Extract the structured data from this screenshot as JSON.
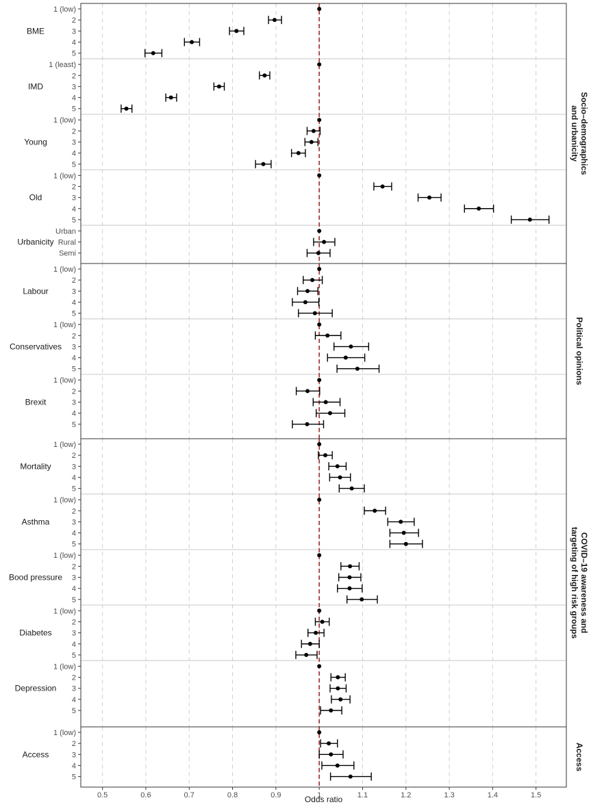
{
  "chart_data": {
    "type": "forest",
    "xlabel": "Odds ratio",
    "xlim": [
      0.45,
      1.57
    ],
    "xticks": [
      0.5,
      0.6,
      0.7,
      0.8,
      0.9,
      1.0,
      1.1,
      1.2,
      1.3,
      1.4,
      1.5
    ],
    "xtick_labels": [
      "0.5",
      "0.6",
      "0.7",
      "0.8",
      "0.9",
      "1",
      "1.1",
      "1.2",
      "1.3",
      "1.4",
      "1.5"
    ],
    "reference_line": {
      "x": 1.0,
      "color": "#cc2a2a",
      "style": "dashed"
    },
    "grid": true,
    "colors": {
      "point": "#000000",
      "grid": "#d0d0d0",
      "separator": "#c8c8c8",
      "frame": "#333333"
    },
    "panels": [
      {
        "strip": [
          "Socio–demographics",
          "and urbanicity"
        ],
        "groups": [
          {
            "name": "BME",
            "rows": [
              {
                "level": "1 (low)",
                "or": 1.0,
                "lo": 1.0,
                "hi": 1.0
              },
              {
                "level": "2",
                "or": 0.897,
                "lo": 0.883,
                "hi": 0.913
              },
              {
                "level": "3",
                "or": 0.809,
                "lo": 0.793,
                "hi": 0.826
              },
              {
                "level": "4",
                "or": 0.706,
                "lo": 0.689,
                "hi": 0.724
              },
              {
                "level": "5",
                "or": 0.617,
                "lo": 0.598,
                "hi": 0.637
              }
            ]
          },
          {
            "name": "IMD",
            "rows": [
              {
                "level": "1 (least)",
                "or": 1.0,
                "lo": 1.0,
                "hi": 1.0
              },
              {
                "level": "2",
                "or": 0.874,
                "lo": 0.862,
                "hi": 0.886
              },
              {
                "level": "3",
                "or": 0.769,
                "lo": 0.757,
                "hi": 0.781
              },
              {
                "level": "4",
                "or": 0.658,
                "lo": 0.646,
                "hi": 0.671
              },
              {
                "level": "5",
                "or": 0.555,
                "lo": 0.543,
                "hi": 0.568
              }
            ]
          },
          {
            "name": "Young",
            "rows": [
              {
                "level": "1 (low)",
                "or": 1.0,
                "lo": 1.0,
                "hi": 1.0
              },
              {
                "level": "2",
                "or": 0.987,
                "lo": 0.972,
                "hi": 1.002
              },
              {
                "level": "3",
                "or": 0.982,
                "lo": 0.967,
                "hi": 0.997
              },
              {
                "level": "4",
                "or": 0.952,
                "lo": 0.936,
                "hi": 0.968
              },
              {
                "level": "5",
                "or": 0.871,
                "lo": 0.853,
                "hi": 0.889
              }
            ]
          },
          {
            "name": "Old",
            "rows": [
              {
                "level": "1 (low)",
                "or": 1.0,
                "lo": 1.0,
                "hi": 1.0
              },
              {
                "level": "2",
                "or": 1.146,
                "lo": 1.126,
                "hi": 1.167
              },
              {
                "level": "3",
                "or": 1.254,
                "lo": 1.228,
                "hi": 1.281
              },
              {
                "level": "4",
                "or": 1.368,
                "lo": 1.335,
                "hi": 1.402
              },
              {
                "level": "5",
                "or": 1.486,
                "lo": 1.443,
                "hi": 1.53
              }
            ]
          },
          {
            "name": "Urbanicity",
            "rows": [
              {
                "level": "Urban",
                "or": 1.0,
                "lo": 1.0,
                "hi": 1.0
              },
              {
                "level": "Rural",
                "or": 1.011,
                "lo": 0.987,
                "hi": 1.036
              },
              {
                "level": "Semi",
                "or": 0.998,
                "lo": 0.972,
                "hi": 1.025
              }
            ]
          }
        ]
      },
      {
        "strip": [
          "Political opinions"
        ],
        "groups": [
          {
            "name": "Labour",
            "rows": [
              {
                "level": "1 (low)",
                "or": 1.0,
                "lo": 1.0,
                "hi": 1.0
              },
              {
                "level": "2",
                "or": 0.984,
                "lo": 0.963,
                "hi": 1.007
              },
              {
                "level": "3",
                "or": 0.973,
                "lo": 0.95,
                "hi": 0.997
              },
              {
                "level": "4",
                "or": 0.968,
                "lo": 0.938,
                "hi": 0.999
              },
              {
                "level": "5",
                "or": 0.99,
                "lo": 0.952,
                "hi": 1.03
              }
            ]
          },
          {
            "name": "Conservatives",
            "rows": [
              {
                "level": "1 (low)",
                "or": 1.0,
                "lo": 1.0,
                "hi": 1.0
              },
              {
                "level": "2",
                "or": 1.019,
                "lo": 0.991,
                "hi": 1.05
              },
              {
                "level": "3",
                "or": 1.073,
                "lo": 1.034,
                "hi": 1.114
              },
              {
                "level": "4",
                "or": 1.061,
                "lo": 1.019,
                "hi": 1.105
              },
              {
                "level": "5",
                "or": 1.088,
                "lo": 1.041,
                "hi": 1.138
              }
            ]
          },
          {
            "name": "Brexit",
            "rows": [
              {
                "level": "1 (low)",
                "or": 1.0,
                "lo": 1.0,
                "hi": 1.0
              },
              {
                "level": "2",
                "or": 0.973,
                "lo": 0.947,
                "hi": 1.001
              },
              {
                "level": "3",
                "or": 1.015,
                "lo": 0.986,
                "hi": 1.048
              },
              {
                "level": "4",
                "or": 1.025,
                "lo": 0.993,
                "hi": 1.059
              },
              {
                "level": "5",
                "or": 0.972,
                "lo": 0.938,
                "hi": 1.01
              }
            ]
          }
        ]
      },
      {
        "strip": [
          "COVID–19 awareness and",
          "targeting of high risk groups"
        ],
        "groups": [
          {
            "name": "Mortality",
            "rows": [
              {
                "level": "1 (low)",
                "or": 1.0,
                "lo": 1.0,
                "hi": 1.0
              },
              {
                "level": "2",
                "or": 1.014,
                "lo": 0.998,
                "hi": 1.03
              },
              {
                "level": "3",
                "or": 1.042,
                "lo": 1.022,
                "hi": 1.062
              },
              {
                "level": "4",
                "or": 1.048,
                "lo": 1.024,
                "hi": 1.072
              },
              {
                "level": "5",
                "or": 1.075,
                "lo": 1.046,
                "hi": 1.104
              }
            ]
          },
          {
            "name": "Asthma",
            "rows": [
              {
                "level": "1 (low)",
                "or": 1.0,
                "lo": 1.0,
                "hi": 1.0
              },
              {
                "level": "2",
                "or": 1.128,
                "lo": 1.104,
                "hi": 1.153
              },
              {
                "level": "3",
                "or": 1.188,
                "lo": 1.158,
                "hi": 1.219
              },
              {
                "level": "4",
                "or": 1.195,
                "lo": 1.163,
                "hi": 1.229
              },
              {
                "level": "5",
                "or": 1.2,
                "lo": 1.163,
                "hi": 1.238
              }
            ]
          },
          {
            "name": "Bood pressure",
            "rows": [
              {
                "level": "1 (low)",
                "or": 1.0,
                "lo": 1.0,
                "hi": 1.0
              },
              {
                "level": "2",
                "or": 1.071,
                "lo": 1.05,
                "hi": 1.092
              },
              {
                "level": "3",
                "or": 1.07,
                "lo": 1.045,
                "hi": 1.096
              },
              {
                "level": "4",
                "or": 1.07,
                "lo": 1.042,
                "hi": 1.099
              },
              {
                "level": "5",
                "or": 1.098,
                "lo": 1.064,
                "hi": 1.134
              }
            ]
          },
          {
            "name": "Diabetes",
            "rows": [
              {
                "level": "1 (low)",
                "or": 1.0,
                "lo": 1.0,
                "hi": 1.0
              },
              {
                "level": "2",
                "or": 1.007,
                "lo": 0.991,
                "hi": 1.023
              },
              {
                "level": "3",
                "or": 0.992,
                "lo": 0.974,
                "hi": 1.011
              },
              {
                "level": "4",
                "or": 0.979,
                "lo": 0.959,
                "hi": 1.0
              },
              {
                "level": "5",
                "or": 0.97,
                "lo": 0.946,
                "hi": 0.995
              }
            ]
          },
          {
            "name": "Depression",
            "rows": [
              {
                "level": "1 (low)",
                "or": 1.0,
                "lo": 1.0,
                "hi": 1.0
              },
              {
                "level": "2",
                "or": 1.043,
                "lo": 1.027,
                "hi": 1.06
              },
              {
                "level": "3",
                "or": 1.043,
                "lo": 1.025,
                "hi": 1.062
              },
              {
                "level": "4",
                "or": 1.049,
                "lo": 1.028,
                "hi": 1.071
              },
              {
                "level": "5",
                "or": 1.027,
                "lo": 1.003,
                "hi": 1.052
              }
            ]
          }
        ]
      },
      {
        "strip": [
          "Access"
        ],
        "groups": [
          {
            "name": "Access",
            "rows": [
              {
                "level": "1 (low)",
                "or": 1.0,
                "lo": 1.0,
                "hi": 1.0
              },
              {
                "level": "2",
                "or": 1.022,
                "lo": 1.003,
                "hi": 1.042
              },
              {
                "level": "3",
                "or": 1.027,
                "lo": 1.0,
                "hi": 1.055
              },
              {
                "level": "4",
                "or": 1.042,
                "lo": 1.006,
                "hi": 1.08
              },
              {
                "level": "5",
                "or": 1.072,
                "lo": 1.026,
                "hi": 1.12
              }
            ]
          }
        ]
      }
    ]
  }
}
